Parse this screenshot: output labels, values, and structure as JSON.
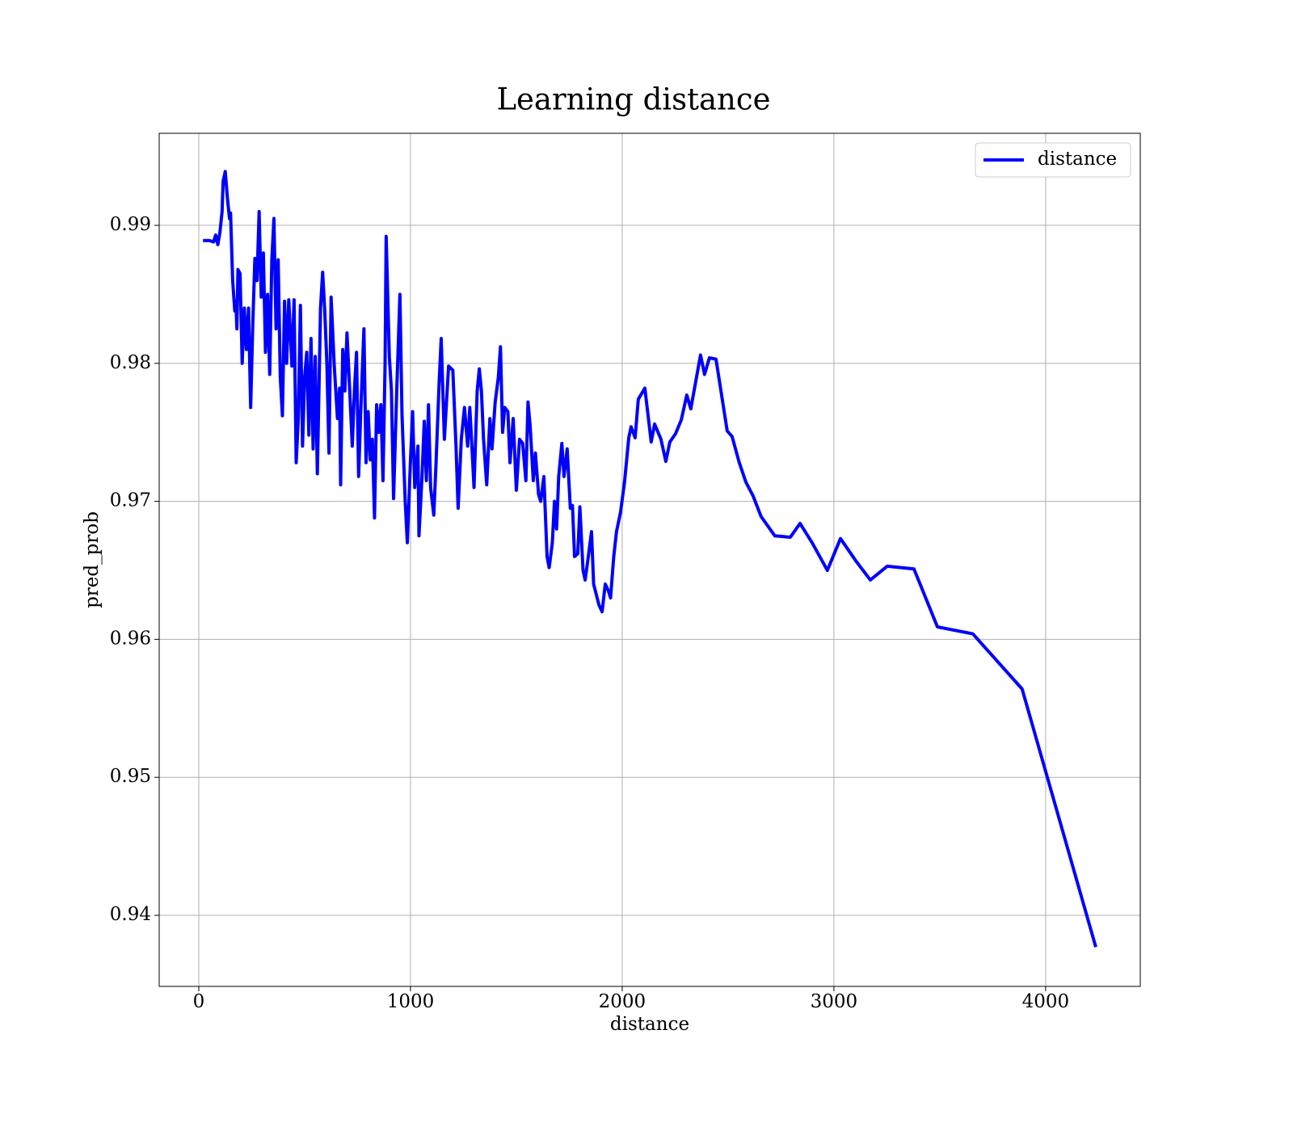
{
  "chart_data": {
    "type": "line",
    "title": "Learning distance",
    "x_label": "distance",
    "y_label": "pred_prob",
    "xlim": [
      -187,
      4447
    ],
    "ylim": [
      0.93485,
      0.99667
    ],
    "xticks": [
      0,
      1000,
      2000,
      3000,
      4000
    ],
    "yticks": [
      0.94,
      0.95,
      0.96,
      0.97,
      0.98,
      0.99
    ],
    "grid": true,
    "legend": "upper right",
    "x": [
      20,
      50,
      70,
      80,
      90,
      100,
      110,
      115,
      125,
      135,
      145,
      150,
      160,
      170,
      175,
      180,
      185,
      195,
      205,
      215,
      225,
      235,
      245,
      255,
      265,
      275,
      285,
      295,
      305,
      315,
      325,
      335,
      345,
      355,
      365,
      375,
      385,
      395,
      405,
      415,
      425,
      440,
      450,
      460,
      470,
      480,
      490,
      500,
      510,
      520,
      530,
      540,
      550,
      560,
      575,
      585,
      595,
      605,
      615,
      625,
      640,
      655,
      665,
      670,
      680,
      690,
      700,
      710,
      725,
      735,
      745,
      755,
      765,
      780,
      790,
      800,
      810,
      820,
      830,
      840,
      850,
      860,
      870,
      880,
      885,
      900,
      910,
      920,
      935,
      950,
      960,
      975,
      985,
      1000,
      1010,
      1020,
      1035,
      1040,
      1055,
      1065,
      1075,
      1085,
      1095,
      1110,
      1120,
      1135,
      1145,
      1160,
      1180,
      1200,
      1215,
      1225,
      1240,
      1255,
      1270,
      1280,
      1290,
      1300,
      1315,
      1325,
      1335,
      1345,
      1360,
      1375,
      1385,
      1400,
      1415,
      1425,
      1435,
      1445,
      1460,
      1470,
      1485,
      1500,
      1515,
      1530,
      1545,
      1555,
      1565,
      1580,
      1590,
      1605,
      1615,
      1630,
      1645,
      1655,
      1670,
      1680,
      1690,
      1700,
      1715,
      1725,
      1740,
      1755,
      1765,
      1775,
      1790,
      1800,
      1815,
      1825,
      1840,
      1855,
      1865,
      1890,
      1905,
      1920,
      1935,
      1945,
      1960,
      1973,
      1992,
      2011,
      2031,
      2042,
      2061,
      2076,
      2107,
      2137,
      2153,
      2183,
      2206,
      2225,
      2252,
      2279,
      2305,
      2324,
      2370,
      2389,
      2412,
      2443,
      2496,
      2519,
      2553,
      2584,
      2618,
      2656,
      2721,
      2794,
      2840,
      2897,
      2969,
      3031,
      3103,
      3172,
      3252,
      3378,
      3489,
      3656,
      3889,
      4237
    ],
    "series": [
      {
        "name": "distance",
        "color": "#0000ff",
        "values": [
          0.9889,
          0.9889,
          0.9888,
          0.9893,
          0.9886,
          0.9895,
          0.991,
          0.9932,
          0.9939,
          0.992,
          0.9905,
          0.9909,
          0.986,
          0.9838,
          0.9845,
          0.9825,
          0.9868,
          0.9865,
          0.98,
          0.984,
          0.981,
          0.984,
          0.9768,
          0.9828,
          0.9876,
          0.986,
          0.991,
          0.9848,
          0.988,
          0.9808,
          0.985,
          0.9792,
          0.9875,
          0.9905,
          0.9825,
          0.9875,
          0.979,
          0.9762,
          0.9845,
          0.98,
          0.9846,
          0.9798,
          0.9846,
          0.9728,
          0.976,
          0.9842,
          0.974,
          0.979,
          0.9808,
          0.9748,
          0.9818,
          0.9738,
          0.9805,
          0.972,
          0.984,
          0.9866,
          0.9838,
          0.98,
          0.9735,
          0.9848,
          0.9798,
          0.976,
          0.9782,
          0.9712,
          0.981,
          0.978,
          0.9822,
          0.979,
          0.974,
          0.978,
          0.9808,
          0.9718,
          0.9765,
          0.9825,
          0.9728,
          0.9765,
          0.973,
          0.9745,
          0.9688,
          0.977,
          0.975,
          0.977,
          0.9715,
          0.98,
          0.9892,
          0.9805,
          0.978,
          0.9702,
          0.978,
          0.985,
          0.9762,
          0.97,
          0.967,
          0.973,
          0.9765,
          0.971,
          0.974,
          0.9675,
          0.972,
          0.9758,
          0.9715,
          0.977,
          0.971,
          0.969,
          0.9725,
          0.9785,
          0.9818,
          0.9745,
          0.9798,
          0.9795,
          0.974,
          0.9695,
          0.9745,
          0.9768,
          0.974,
          0.9768,
          0.974,
          0.971,
          0.978,
          0.9796,
          0.978,
          0.9745,
          0.9712,
          0.976,
          0.9738,
          0.9772,
          0.979,
          0.9812,
          0.975,
          0.9768,
          0.9765,
          0.9728,
          0.976,
          0.9708,
          0.9745,
          0.9742,
          0.9715,
          0.9772,
          0.9755,
          0.9715,
          0.9735,
          0.9705,
          0.97,
          0.9718,
          0.966,
          0.9652,
          0.967,
          0.97,
          0.968,
          0.9718,
          0.9742,
          0.9718,
          0.9738,
          0.9695,
          0.9697,
          0.966,
          0.9662,
          0.9696,
          0.965,
          0.9643,
          0.966,
          0.9678,
          0.964,
          0.9625,
          0.962,
          0.964,
          0.9635,
          0.963,
          0.966,
          0.9678,
          0.9692,
          0.9714,
          0.9746,
          0.9754,
          0.9746,
          0.9774,
          0.9782,
          0.9743,
          0.9756,
          0.9745,
          0.9729,
          0.9743,
          0.9749,
          0.9759,
          0.9777,
          0.9767,
          0.9806,
          0.9792,
          0.9804,
          0.9803,
          0.9751,
          0.9747,
          0.9728,
          0.9714,
          0.9704,
          0.9689,
          0.9675,
          0.9674,
          0.9684,
          0.967,
          0.965,
          0.9673,
          0.9657,
          0.9643,
          0.9653,
          0.9651,
          0.9609,
          0.9604,
          0.9564,
          0.9377
        ]
      }
    ]
  }
}
